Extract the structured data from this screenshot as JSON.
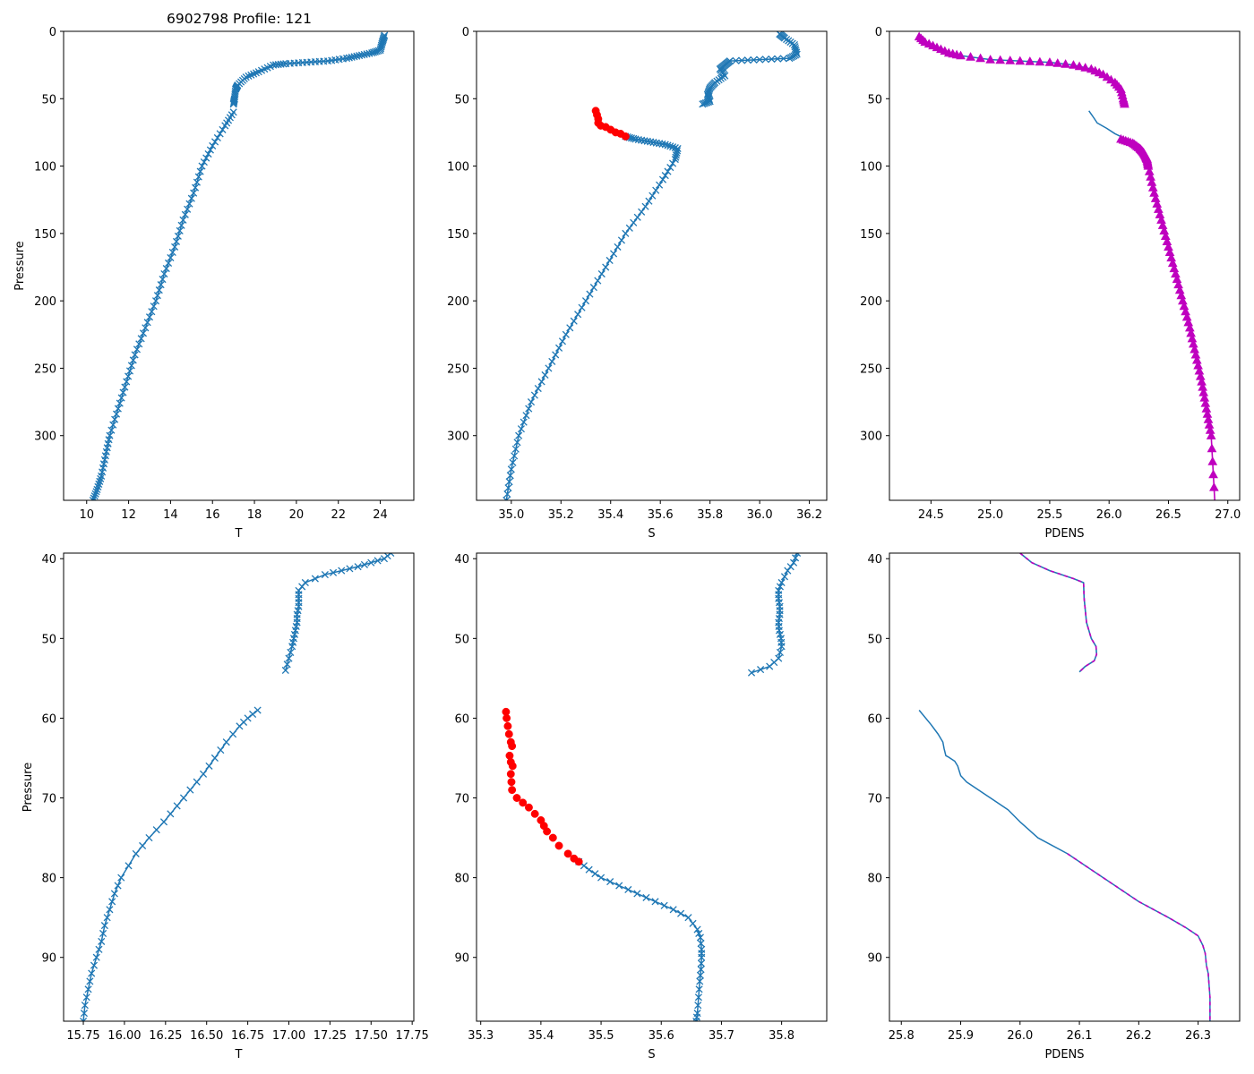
{
  "figure": {
    "title": "6902798 Profile: 121"
  },
  "colors": {
    "line": "#1f77b4",
    "flag": "#ff0000",
    "density": "#bf00bf",
    "axes": "#000000"
  },
  "chart_data": [
    {
      "id": "top-T",
      "type": "line",
      "xlabel": "T",
      "ylabel": "Pressure",
      "title": "6902798 Profile: 121",
      "xlim": [
        8.9,
        25.6
      ],
      "ylim": [
        348,
        0
      ],
      "ylim_inverted": true,
      "xticks": [
        10,
        12,
        14,
        16,
        18,
        20,
        22,
        24
      ],
      "xtick_labels": [
        "10",
        "12",
        "14",
        "16",
        "18",
        "20",
        "22",
        "24"
      ],
      "yticks": [
        0,
        50,
        100,
        150,
        200,
        250,
        300
      ],
      "ytick_labels": [
        "0",
        "50",
        "100",
        "150",
        "200",
        "250",
        "300"
      ],
      "series": [
        {
          "name": "T",
          "style": "line-x",
          "segments": [
            {
              "x": [
                24.2,
                24.1,
                24.0,
                23.6,
                23.0,
                22.4,
                21.5,
                20.5,
                19.5,
                18.9,
                18.2,
                17.6,
                17.2,
                17.1,
                17.05,
                17.0
              ],
              "y": [
                3,
                8,
                14,
                16,
                18,
                20,
                22,
                23,
                24,
                25,
                30,
                34,
                40,
                43,
                50,
                54
              ]
            },
            {
              "x": [
                17.0,
                16.6,
                16.0,
                15.5,
                15.1,
                14.6,
                14.2,
                13.7,
                13.3,
                12.8,
                12.3,
                11.9,
                11.5,
                11.1,
                10.9,
                10.7,
                10.5,
                10.3
              ],
              "y": [
                60,
                70,
                85,
                100,
                120,
                140,
                160,
                180,
                200,
                220,
                240,
                260,
                280,
                300,
                315,
                330,
                340,
                348
              ]
            }
          ]
        }
      ]
    },
    {
      "id": "top-S",
      "type": "line",
      "xlabel": "S",
      "xlim": [
        34.86,
        36.27
      ],
      "ylim": [
        348,
        0
      ],
      "ylim_inverted": true,
      "xticks": [
        35.0,
        35.2,
        35.4,
        35.6,
        35.8,
        36.0,
        36.2
      ],
      "xtick_labels": [
        "35.0",
        "35.2",
        "35.4",
        "35.6",
        "35.8",
        "36.0",
        "36.2"
      ],
      "yticks": [
        0,
        50,
        100,
        150,
        200,
        250,
        300
      ],
      "ytick_labels": [
        "0",
        "50",
        "100",
        "150",
        "200",
        "250",
        "300"
      ],
      "series": [
        {
          "name": "S",
          "style": "line-x",
          "segments": [
            {
              "x": [
                36.08,
                36.1,
                36.14,
                36.15,
                36.12,
                36.0,
                35.88,
                35.86,
                35.84,
                35.86,
                35.82,
                35.8,
                35.79,
                35.8,
                35.77
              ],
              "y": [
                2,
                5,
                10,
                17,
                20,
                21,
                22,
                25,
                28,
                33,
                38,
                42,
                47,
                52,
                54
              ]
            },
            {
              "x": [
                35.46,
                35.5,
                35.56,
                35.62,
                35.67,
                35.66,
                35.61,
                35.54,
                35.46,
                35.38,
                35.3,
                35.22,
                35.15,
                35.08,
                35.03,
                35.0,
                34.98
              ],
              "y": [
                78,
                80,
                82,
                84,
                87,
                95,
                110,
                130,
                150,
                175,
                200,
                225,
                250,
                275,
                300,
                325,
                348
              ]
            }
          ]
        },
        {
          "name": "S flagged",
          "style": "dots-red",
          "x": [
            35.34,
            35.345,
            35.35,
            35.35,
            35.36,
            35.38,
            35.4,
            35.42,
            35.44,
            35.46
          ],
          "y": [
            59,
            62,
            65,
            68,
            70,
            71,
            73,
            75,
            76,
            78
          ]
        }
      ]
    },
    {
      "id": "top-PDENS",
      "type": "line",
      "xlabel": "PDENS",
      "xlim": [
        24.15,
        27.1
      ],
      "ylim": [
        348,
        0
      ],
      "ylim_inverted": true,
      "xticks": [
        24.5,
        25.0,
        25.5,
        26.0,
        26.5,
        27.0
      ],
      "xtick_labels": [
        "24.5",
        "25.0",
        "25.5",
        "26.0",
        "26.5",
        "27.0"
      ],
      "yticks": [
        0,
        50,
        100,
        150,
        200,
        250,
        300
      ],
      "ytick_labels": [
        "0",
        "50",
        "100",
        "150",
        "200",
        "250",
        "300"
      ],
      "series": [
        {
          "name": "PDENS triangles",
          "style": "line-tri",
          "segments": [
            {
              "x": [
                24.4,
                24.45,
                24.55,
                24.65,
                24.75,
                25.0,
                25.25,
                25.5,
                25.7,
                25.85,
                25.95,
                26.05,
                26.1,
                26.12,
                26.13
              ],
              "y": [
                4,
                8,
                12,
                16,
                18,
                21,
                22,
                23,
                25,
                28,
                32,
                38,
                43,
                50,
                54
              ]
            }
          ]
        },
        {
          "name": "PDENS",
          "style": "line",
          "segments": [
            {
              "x": [
                25.83,
                25.87,
                25.9,
                25.98,
                26.05,
                26.12,
                26.2,
                26.26,
                26.28
              ],
              "y": [
                59,
                64,
                68,
                72,
                76,
                79,
                83,
                87,
                92
              ]
            }
          ]
        },
        {
          "name": "PDENS magenta",
          "style": "line-magenta",
          "segments": [
            {
              "x": [
                26.1,
                26.2,
                26.26,
                26.29,
                26.31,
                26.32,
                26.33,
                26.38,
                26.44,
                26.5,
                26.56,
                26.62,
                26.68,
                26.73,
                26.78,
                26.82,
                26.86,
                26.89
              ],
              "y": [
                80,
                83,
                87,
                90,
                93,
                95,
                100,
                120,
                140,
                160,
                180,
                200,
                220,
                240,
                260,
                280,
                300,
                348
              ]
            }
          ]
        }
      ]
    },
    {
      "id": "bottom-T",
      "type": "line",
      "xlabel": "T",
      "ylabel": "Pressure",
      "xlim": [
        15.63,
        17.76
      ],
      "ylim": [
        98,
        39.3
      ],
      "ylim_inverted": true,
      "xticks": [
        15.75,
        16.0,
        16.25,
        16.5,
        16.75,
        17.0,
        17.25,
        17.5,
        17.75
      ],
      "xtick_labels": [
        "15.75",
        "16.00",
        "16.25",
        "16.50",
        "16.75",
        "17.00",
        "17.25",
        "17.50",
        "17.75"
      ],
      "yticks": [
        40,
        50,
        60,
        70,
        80,
        90
      ],
      "ytick_labels": [
        "40",
        "50",
        "60",
        "70",
        "80",
        "90"
      ],
      "series": [
        {
          "name": "T",
          "style": "line-x",
          "segments": [
            {
              "x": [
                17.62,
                17.58,
                17.5,
                17.42,
                17.32,
                17.22,
                17.1,
                17.06,
                17.06,
                17.06,
                17.05,
                17.05,
                17.04,
                17.03,
                17.02,
                17.0,
                16.98
              ],
              "y": [
                39.3,
                40,
                40.5,
                41,
                41.5,
                42,
                43,
                44,
                45,
                46,
                47,
                48,
                49,
                50,
                51,
                52.5,
                54
              ]
            },
            {
              "x": [
                16.81,
                16.75,
                16.7,
                16.62,
                16.55,
                16.48,
                16.4,
                16.32,
                16.24,
                16.15,
                16.07,
                15.98,
                15.94,
                15.91,
                15.88,
                15.86,
                15.83,
                15.8,
                15.78,
                15.76,
                15.75
              ],
              "y": [
                59,
                60,
                61,
                63,
                65,
                67,
                69,
                71,
                73,
                75,
                77,
                80,
                82,
                84,
                86,
                88,
                90,
                92,
                94,
                96,
                98
              ]
            }
          ]
        }
      ]
    },
    {
      "id": "bottom-S",
      "type": "line",
      "xlabel": "S",
      "xlim": [
        35.293,
        35.875
      ],
      "ylim": [
        98,
        39.3
      ],
      "ylim_inverted": true,
      "xticks": [
        35.3,
        35.4,
        35.5,
        35.6,
        35.7,
        35.8
      ],
      "xtick_labels": [
        "35.3",
        "35.4",
        "35.5",
        "35.6",
        "35.7",
        "35.8"
      ],
      "yticks": [
        40,
        50,
        60,
        70,
        80,
        90
      ],
      "ytick_labels": [
        "40",
        "50",
        "60",
        "70",
        "80",
        "90"
      ],
      "series": [
        {
          "name": "S",
          "style": "line-x",
          "segments": [
            {
              "x": [
                35.826,
                35.82,
                35.81,
                35.8,
                35.795,
                35.795,
                35.797,
                35.797,
                35.795,
                35.796,
                35.799,
                35.8,
                35.795,
                35.78,
                35.75
              ],
              "y": [
                39.3,
                40.5,
                41.5,
                43,
                44,
                45,
                46,
                47,
                48,
                49,
                50,
                51,
                52.5,
                53.5,
                54.3
              ]
            },
            {
              "x": [
                35.463,
                35.48,
                35.5,
                35.53,
                35.56,
                35.59,
                35.62,
                35.645,
                35.66,
                35.665,
                35.667,
                35.667,
                35.666,
                35.664,
                35.662,
                35.66,
                35.658
              ],
              "y": [
                78,
                79,
                80,
                81,
                82,
                83,
                84,
                85,
                86.5,
                87.5,
                89,
                90,
                91.5,
                93,
                95,
                97,
                98
              ]
            }
          ]
        },
        {
          "name": "S flagged",
          "style": "dots-red",
          "x": [
            35.342,
            35.343,
            35.345,
            35.347,
            35.35,
            35.352,
            35.348,
            35.35,
            35.353,
            35.35,
            35.351,
            35.352,
            35.36,
            35.37,
            35.38,
            35.39,
            35.4,
            35.405,
            35.41,
            35.42,
            35.43,
            35.445,
            35.455,
            35.463
          ],
          "y": [
            59.2,
            60,
            61,
            62,
            63,
            63.5,
            64.7,
            65.5,
            66,
            67,
            68,
            69,
            70,
            70.6,
            71.2,
            72,
            72.8,
            73.5,
            74.2,
            75,
            76,
            77,
            77.6,
            78
          ]
        }
      ]
    },
    {
      "id": "bottom-PDENS",
      "type": "line",
      "xlabel": "PDENS",
      "xlim": [
        25.78,
        26.37
      ],
      "ylim": [
        98,
        39.3
      ],
      "ylim_inverted": true,
      "xticks": [
        25.8,
        25.9,
        26.0,
        26.1,
        26.2,
        26.3
      ],
      "xtick_labels": [
        "25.8",
        "25.9",
        "26.0",
        "26.1",
        "26.2",
        "26.3"
      ],
      "yticks": [
        40,
        50,
        60,
        70,
        80,
        90
      ],
      "ytick_labels": [
        "40",
        "50",
        "60",
        "70",
        "80",
        "90"
      ],
      "series": [
        {
          "name": "PDENS upper",
          "style": "line-dashed-magenta",
          "segments": [
            {
              "x": [
                26.0,
                26.02,
                26.05,
                26.09,
                26.107,
                26.108,
                26.11,
                26.112,
                26.12,
                26.128,
                26.129,
                26.125,
                26.11,
                26.1
              ],
              "y": [
                39.3,
                40.5,
                41.5,
                42.5,
                43,
                45,
                46.5,
                48,
                50,
                51,
                52,
                52.8,
                53.5,
                54.2
              ]
            }
          ]
        },
        {
          "name": "PDENS lower",
          "style": "line",
          "segments": [
            {
              "x": [
                25.83,
                25.85,
                25.862,
                25.87,
                25.872,
                25.875,
                25.88,
                25.89,
                25.895,
                25.9,
                25.91,
                25.95,
                25.98,
                26.0,
                26.03,
                26.08,
                26.12,
                26.16,
                26.2,
                26.25,
                26.28,
                26.3,
                26.308,
                26.312,
                26.314,
                26.317,
                26.318,
                26.32,
                26.32
              ],
              "y": [
                59,
                60.8,
                62,
                63,
                63.8,
                64.7,
                64.9,
                65.4,
                66,
                67.2,
                68,
                70,
                71.5,
                73,
                75,
                77,
                79,
                81,
                83,
                85,
                86.3,
                87.3,
                88.5,
                89.5,
                91,
                92,
                93,
                95,
                98
              ]
            }
          ]
        },
        {
          "name": "PDENS lower overlay",
          "style": "dashed-magenta-overlay",
          "segments": [
            {
              "x": [
                26.08,
                26.12,
                26.16,
                26.2,
                26.25,
                26.28,
                26.3,
                26.308,
                26.312,
                26.314,
                26.317,
                26.318,
                26.32,
                26.32
              ],
              "y": [
                77,
                79,
                81,
                83,
                85,
                86.3,
                87.3,
                88.5,
                89.5,
                91,
                92,
                93,
                95,
                98
              ]
            }
          ]
        }
      ]
    }
  ]
}
